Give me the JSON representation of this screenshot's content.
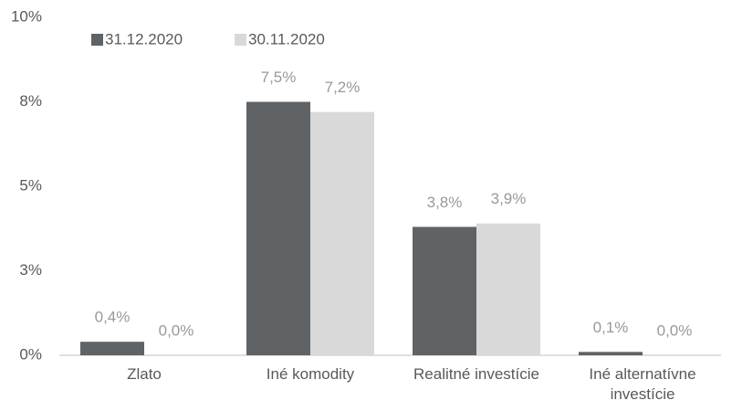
{
  "chart_data": {
    "type": "bar",
    "categories": [
      "Zlato",
      "Iné komodity",
      "Realitné investície",
      "Iné alternatívne investície"
    ],
    "series": [
      {
        "name": "31.12.2020",
        "color": "#5f6366",
        "values": [
          0.4,
          7.5,
          3.8,
          0.1
        ],
        "value_labels": [
          "0,4%",
          "7,5%",
          "3,8%",
          "0,1%"
        ]
      },
      {
        "name": "30.11.2020",
        "color": "#d9d9d9",
        "values": [
          0.0,
          7.2,
          3.9,
          0.0
        ],
        "value_labels": [
          "0,0%",
          "7,2%",
          "3,9%",
          "0,0%"
        ]
      }
    ],
    "ylim": [
      0,
      10
    ],
    "yticks": [
      {
        "value": 0,
        "label": "0%"
      },
      {
        "value": 2.5,
        "label": "3%"
      },
      {
        "value": 5,
        "label": "5%"
      },
      {
        "value": 7.5,
        "label": "8%"
      },
      {
        "value": 10,
        "label": "10%"
      }
    ],
    "grid": false,
    "legend": "top-left"
  }
}
